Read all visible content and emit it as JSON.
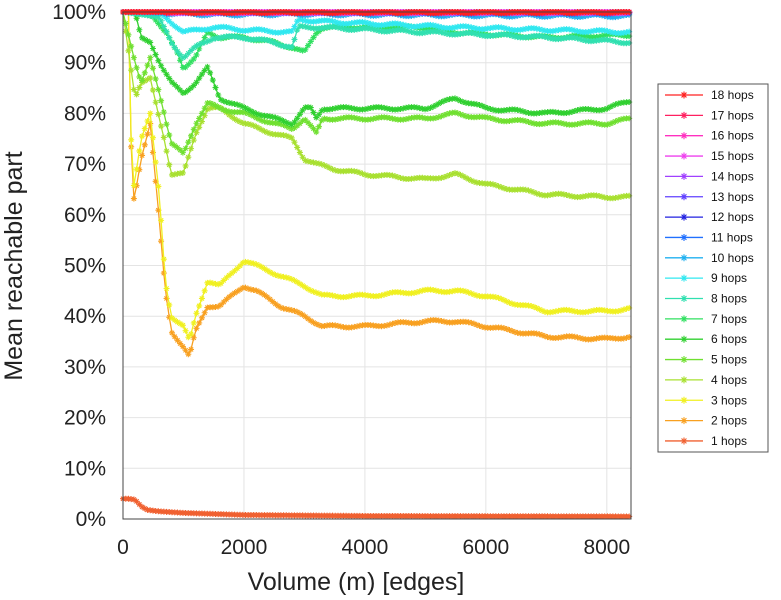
{
  "chart_data": {
    "type": "line",
    "title": "",
    "xlabel": "Volume (m) [edges]",
    "ylabel": "Mean reachable part",
    "xlim": [
      0,
      8400
    ],
    "ylim": [
      0,
      100
    ],
    "x_ticks": [
      0,
      2000,
      4000,
      6000,
      8000
    ],
    "y_ticks": [
      "0%",
      "10%",
      "20%",
      "30%",
      "40%",
      "50%",
      "60%",
      "70%",
      "80%",
      "90%",
      "100%"
    ],
    "grid": true,
    "legend_position": "right",
    "marker": "asterisk",
    "series": [
      {
        "name": "18 hops",
        "color": "#ff2020",
        "x": [
          0,
          8400
        ],
        "y": [
          100,
          100
        ]
      },
      {
        "name": "17 hops",
        "color": "#ff2060",
        "x": [
          0,
          8400
        ],
        "y": [
          100,
          100
        ]
      },
      {
        "name": "16 hops",
        "color": "#ff30c0",
        "x": [
          0,
          8400
        ],
        "y": [
          100,
          100
        ]
      },
      {
        "name": "15 hops",
        "color": "#ee40ee",
        "x": [
          0,
          8400
        ],
        "y": [
          100,
          100
        ]
      },
      {
        "name": "14 hops",
        "color": "#a040ff",
        "x": [
          0,
          8400
        ],
        "y": [
          100,
          100
        ]
      },
      {
        "name": "13 hops",
        "color": "#6040ff",
        "x": [
          0,
          8400
        ],
        "y": [
          100,
          100
        ]
      },
      {
        "name": "12 hops",
        "color": "#2020e0",
        "x": [
          0,
          8400
        ],
        "y": [
          100,
          100
        ]
      },
      {
        "name": "11 hops",
        "color": "#2070ff",
        "x": [
          0,
          8400
        ],
        "y": [
          100,
          99.8
        ]
      },
      {
        "name": "10 hops",
        "color": "#20b0f0",
        "x": [
          0,
          600,
          1500,
          3000,
          5000,
          8400
        ],
        "y": [
          100,
          99.8,
          99.5,
          99.6,
          99.4,
          99.2
        ]
      },
      {
        "name": "9 hops",
        "color": "#30e8f0",
        "x": [
          0,
          600,
          800,
          1000,
          1500,
          2000,
          2800,
          2900,
          3500,
          5500,
          8400
        ],
        "y": [
          100,
          100,
          98,
          96,
          97,
          96.5,
          96,
          98.5,
          98,
          97,
          96
        ]
      },
      {
        "name": "8 hops",
        "color": "#30e0b0",
        "x": [
          0,
          600,
          800,
          1000,
          1200,
          1500,
          2000,
          2500,
          2800,
          2900,
          3200,
          5000,
          7000,
          8400
        ],
        "y": [
          100,
          99,
          94,
          91,
          93,
          95,
          95,
          94,
          93,
          97,
          97,
          96,
          95,
          94
        ]
      },
      {
        "name": "7 hops",
        "color": "#30e060",
        "x": [
          0,
          300,
          500,
          700,
          900,
          1000,
          1200,
          1400,
          1600,
          2000,
          2500,
          2800,
          3000,
          3200,
          3300,
          5000,
          5500,
          7000,
          8400
        ],
        "y": [
          100,
          100,
          99,
          96,
          92,
          89,
          91,
          96,
          95,
          95,
          94,
          93,
          92,
          96,
          97,
          97,
          96,
          95,
          95.5
        ]
      },
      {
        "name": "6 hops",
        "color": "#30d030",
        "x": [
          0,
          200,
          300,
          450,
          600,
          800,
          1000,
          1200,
          1400,
          1600,
          2000,
          2500,
          2800,
          3000,
          3100,
          3200,
          3300,
          4000,
          5000,
          5500,
          6000,
          7000,
          8000,
          8400
        ],
        "y": [
          100,
          100,
          95,
          94,
          90,
          86,
          84,
          86,
          89,
          83,
          81,
          79,
          78,
          81,
          81,
          79,
          81,
          81,
          81,
          83,
          81,
          80,
          81,
          82.5
        ]
      },
      {
        "name": "5 hops",
        "color": "#70e030",
        "x": [
          0,
          200,
          300,
          450,
          600,
          800,
          1000,
          1200,
          1400,
          1600,
          2000,
          2500,
          2800,
          3000,
          3200,
          3300,
          4000,
          5000,
          5500,
          6000,
          7000,
          8000,
          8400
        ],
        "y": [
          100,
          90,
          86,
          91,
          84,
          74,
          72,
          78,
          82,
          81,
          80,
          78,
          77,
          79,
          76,
          79,
          79,
          79,
          80,
          79,
          78,
          78,
          79
        ]
      },
      {
        "name": "4 hops",
        "color": "#a8e030",
        "x": [
          0,
          200,
          300,
          450,
          600,
          700,
          800,
          1000,
          1200,
          1400,
          1600,
          2000,
          2500,
          2800,
          3000,
          3200,
          3500,
          4000,
          5000,
          5500,
          6000,
          7000,
          8000,
          8400
        ],
        "y": [
          100,
          83,
          86,
          87,
          79,
          74,
          68,
          68,
          76,
          81,
          81,
          78,
          76,
          75,
          71,
          70,
          69,
          68,
          67,
          68,
          66,
          64,
          63.5,
          63.5
        ]
      },
      {
        "name": "3 hops",
        "color": "#f0f020",
        "x": [
          0,
          100,
          150,
          200,
          300,
          450,
          600,
          700,
          800,
          1000,
          1100,
          1200,
          1400,
          1600,
          2000,
          2200,
          2600,
          3000,
          3300,
          4000,
          5000,
          5500,
          6000,
          7000,
          8000,
          8400
        ],
        "y": [
          100,
          100,
          64,
          67,
          75,
          80,
          64,
          47,
          40,
          38,
          35,
          40,
          47,
          46,
          51,
          50,
          48,
          46,
          44,
          44,
          45,
          45,
          44,
          41,
          41,
          41.5
        ]
      },
      {
        "name": "2 hops",
        "color": "#f8a020",
        "x": [
          0,
          100,
          150,
          200,
          300,
          450,
          600,
          700,
          800,
          1000,
          1100,
          1200,
          1400,
          1600,
          2000,
          2200,
          2600,
          3000,
          3300,
          4000,
          5000,
          5500,
          6000,
          7000,
          8000,
          8400
        ],
        "y": [
          100,
          100,
          62,
          64,
          71,
          78,
          59,
          45,
          37,
          34,
          32,
          37,
          42,
          42,
          46,
          45,
          42,
          40,
          38,
          38,
          39,
          39,
          38,
          36,
          35.5,
          36
        ]
      },
      {
        "name": "1 hops",
        "color": "#f06030",
        "x": [
          0,
          100,
          200,
          300,
          400,
          600,
          1000,
          2000,
          4000,
          8400
        ],
        "y": [
          4,
          4,
          3.8,
          2.5,
          1.8,
          1.5,
          1.2,
          0.8,
          0.6,
          0.5
        ]
      }
    ]
  }
}
